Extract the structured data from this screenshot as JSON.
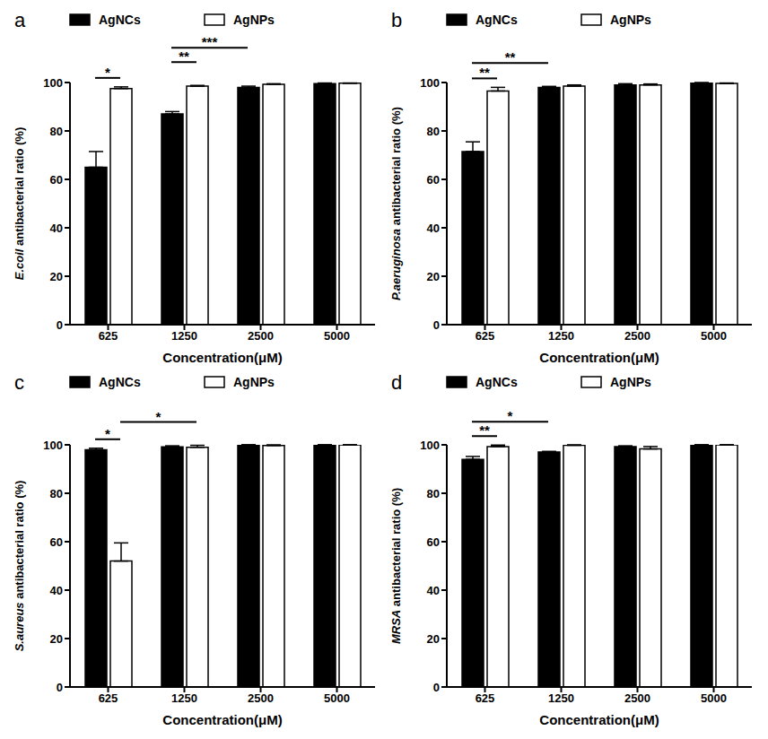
{
  "chart_data": [
    {
      "type": "bar",
      "panel": "a",
      "y_label": "E.coil antibacterial ratio (%)",
      "x_label": "Concentration(μM)",
      "categories": [
        "625",
        "1250",
        "2500",
        "5000"
      ],
      "ylim": [
        0,
        100
      ],
      "yticks": [
        0,
        20,
        40,
        60,
        80,
        100
      ],
      "grid": false,
      "legend": "top",
      "series": [
        {
          "name": "AgNCs",
          "color": "#000000",
          "values": [
            65,
            87,
            98,
            99.5
          ],
          "errors": [
            6.5,
            1,
            0.5,
            0.3
          ]
        },
        {
          "name": "AgNPs",
          "color": "#ffffff",
          "values": [
            97.5,
            98.5,
            99.3,
            99.7
          ],
          "errors": [
            0.7,
            0.3,
            0.2,
            0.1
          ]
        }
      ],
      "annotations": [
        {
          "text": "*",
          "from": {
            "category": "625",
            "series": "AgNCs"
          },
          "to": {
            "category": "625",
            "series": "AgNPs"
          }
        },
        {
          "text": "**",
          "from": {
            "category": "1250",
            "series": "AgNCs"
          },
          "to": {
            "category": "1250",
            "series": "AgNPs"
          }
        },
        {
          "text": "***",
          "from": {
            "category": "1250",
            "series": "AgNCs"
          },
          "to": {
            "category": "2500",
            "series": "AgNCs"
          }
        }
      ]
    },
    {
      "type": "bar",
      "panel": "b",
      "y_label": "P.aeruginosa antibacterial ratio (%)",
      "x_label": "Concentration(μM)",
      "categories": [
        "625",
        "1250",
        "2500",
        "5000"
      ],
      "ylim": [
        0,
        100
      ],
      "yticks": [
        0,
        20,
        40,
        60,
        80,
        100
      ],
      "grid": false,
      "legend": "top",
      "series": [
        {
          "name": "AgNCs",
          "color": "#000000",
          "values": [
            71.5,
            98,
            99,
            99.7
          ],
          "errors": [
            4,
            0.4,
            0.5,
            0.3
          ]
        },
        {
          "name": "AgNPs",
          "color": "#ffffff",
          "values": [
            96.5,
            98.5,
            99,
            99.6
          ],
          "errors": [
            1.5,
            0.5,
            0.4,
            0.2
          ]
        }
      ],
      "annotations": [
        {
          "text": "**",
          "from": {
            "category": "625",
            "series": "AgNCs"
          },
          "to": {
            "category": "625",
            "series": "AgNPs"
          }
        },
        {
          "text": "**",
          "from": {
            "category": "625",
            "series": "AgNCs"
          },
          "to": {
            "category": "1250",
            "series": "AgNCs"
          }
        }
      ]
    },
    {
      "type": "bar",
      "panel": "c",
      "y_label": "S.aureus antibacterial ratio (%)",
      "x_label": "Concentration(μM)",
      "categories": [
        "625",
        "1250",
        "2500",
        "5000"
      ],
      "ylim": [
        0,
        100
      ],
      "yticks": [
        0,
        20,
        40,
        60,
        80,
        100
      ],
      "grid": false,
      "legend": "top",
      "series": [
        {
          "name": "AgNCs",
          "color": "#000000",
          "values": [
            98,
            99.2,
            100,
            100
          ],
          "errors": [
            0.6,
            0.4,
            0,
            0
          ]
        },
        {
          "name": "AgNPs",
          "color": "#ffffff",
          "values": [
            52,
            99,
            99.7,
            100
          ],
          "errors": [
            7.5,
            0.8,
            0.3,
            0
          ]
        }
      ],
      "annotations": [
        {
          "text": "*",
          "from": {
            "category": "625",
            "series": "AgNCs"
          },
          "to": {
            "category": "625",
            "series": "AgNPs"
          }
        },
        {
          "text": "*",
          "from": {
            "category": "625",
            "series": "AgNPs"
          },
          "to": {
            "category": "1250",
            "series": "AgNPs"
          }
        }
      ]
    },
    {
      "type": "bar",
      "panel": "d",
      "y_label": "MRSA antibacterial ratio (%)",
      "x_label": "Concentration(μM)",
      "categories": [
        "625",
        "1250",
        "2500",
        "5000"
      ],
      "ylim": [
        0,
        100
      ],
      "yticks": [
        0,
        20,
        40,
        60,
        80,
        100
      ],
      "grid": false,
      "legend": "top",
      "series": [
        {
          "name": "AgNCs",
          "color": "#000000",
          "values": [
            94,
            97,
            99.3,
            100
          ],
          "errors": [
            1.2,
            0.3,
            0.3,
            0
          ]
        },
        {
          "name": "AgNPs",
          "color": "#ffffff",
          "values": [
            99.3,
            99.8,
            98.3,
            100
          ],
          "errors": [
            0.6,
            0.2,
            1,
            0
          ]
        }
      ],
      "annotations": [
        {
          "text": "**",
          "from": {
            "category": "625",
            "series": "AgNCs"
          },
          "to": {
            "category": "625",
            "series": "AgNPs"
          }
        },
        {
          "text": "*",
          "from": {
            "category": "625",
            "series": "AgNCs"
          },
          "to": {
            "category": "1250",
            "series": "AgNCs"
          }
        }
      ]
    }
  ]
}
